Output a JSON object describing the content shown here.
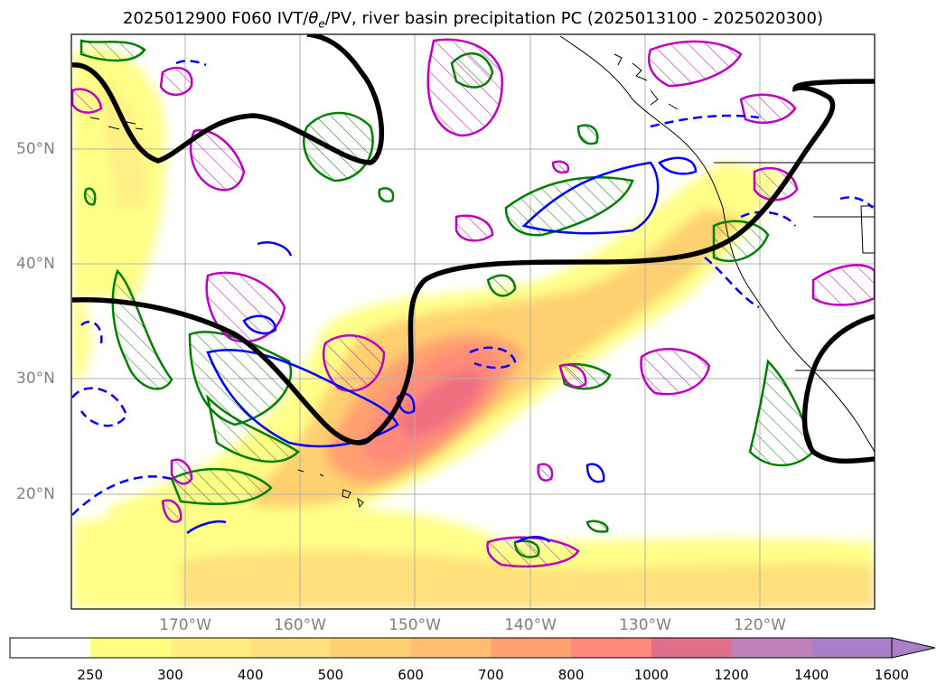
{
  "title": {
    "prefix": "2025012900 F060 IVT/",
    "theta": "θ",
    "theta_sub": "e",
    "suffix": "/PV, river basin precipitation PC (2025013100 - 2025020300)"
  },
  "map": {
    "projection": "plate-carree",
    "lon_range": [
      -180,
      -110
    ],
    "lat_range": [
      10,
      60
    ],
    "grid": true,
    "lat_ticks": [
      {
        "value": 50,
        "label": "50°N"
      },
      {
        "value": 40,
        "label": "40°N"
      },
      {
        "value": 30,
        "label": "30°N"
      },
      {
        "value": 20,
        "label": "20°N"
      }
    ],
    "lon_ticks": [
      {
        "value": -170,
        "label": "170°W"
      },
      {
        "value": -160,
        "label": "160°W"
      },
      {
        "value": -150,
        "label": "150°W"
      },
      {
        "value": -140,
        "label": "140°W"
      },
      {
        "value": -130,
        "label": "130°W"
      },
      {
        "value": -120,
        "label": "120°W"
      }
    ],
    "layers": {
      "ivt_fill": "IVT shading",
      "pv_contour": "black thick contour",
      "theta_e_contours": "blue solid/dashed",
      "precip_contours": "green hatched",
      "pc_contours": "magenta hatched"
    }
  },
  "colorbar": {
    "levels": [
      "250",
      "300",
      "400",
      "500",
      "600",
      "700",
      "800",
      "1000",
      "1200",
      "1400",
      "1600"
    ],
    "colors": [
      "#ffffff",
      "#ffff80",
      "#ffef80",
      "#ffe07a",
      "#ffd070",
      "#ffbe70",
      "#ffa070",
      "#ff8a7a",
      "#e0708a",
      "#c080b8",
      "#a880c8"
    ],
    "extend": "max"
  }
}
